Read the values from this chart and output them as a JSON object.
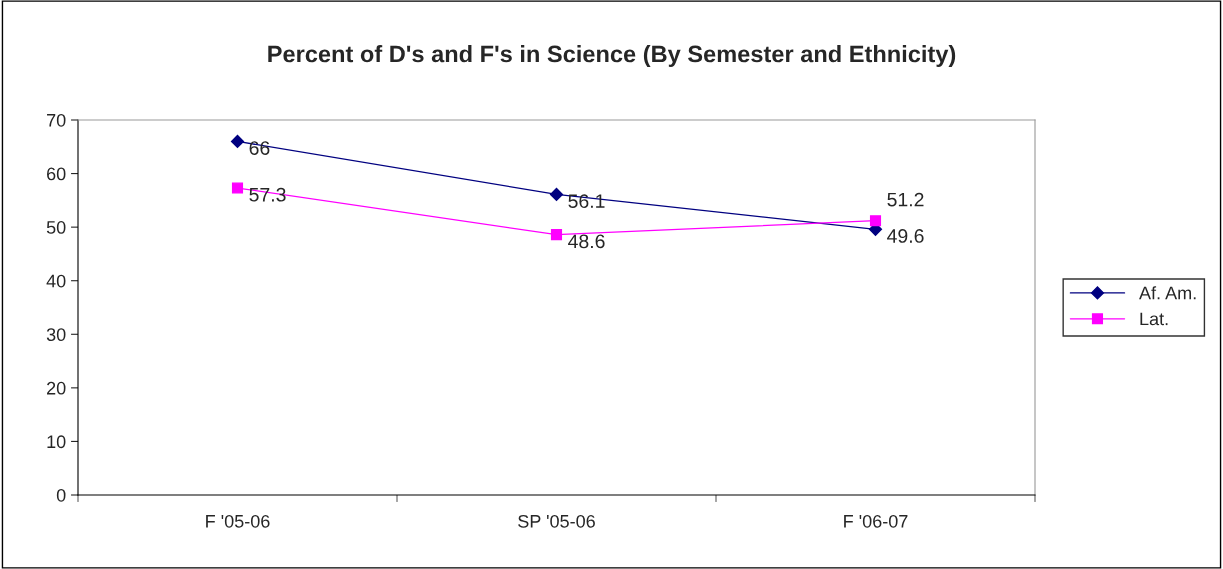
{
  "chart_data": {
    "type": "line",
    "title": "Percent of D's and F's in Science (By Semester and Ethnicity)",
    "categories": [
      "F '05-06",
      "SP '05-06",
      "F '06-07"
    ],
    "series": [
      {
        "name": "Af. Am.",
        "color": "#000080",
        "marker": "diamond",
        "values": [
          66,
          56.1,
          49.6
        ]
      },
      {
        "name": "Lat.",
        "color": "#ff00ff",
        "marker": "square",
        "values": [
          57.3,
          48.6,
          51.2
        ]
      }
    ],
    "ylim": [
      0,
      70
    ],
    "yticks": [
      0,
      10,
      20,
      30,
      40,
      50,
      60,
      70
    ],
    "grid": false,
    "legend": "right",
    "data_labels": true
  }
}
